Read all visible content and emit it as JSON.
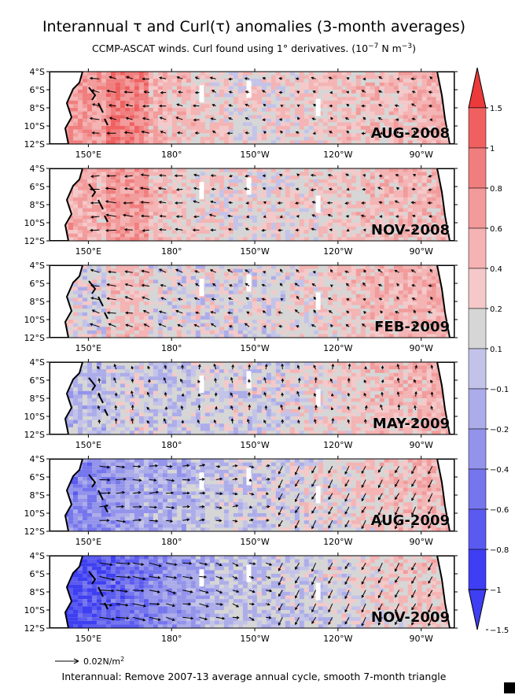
{
  "chart_data": {
    "type": "heatmap",
    "title": "Interannual τ and Curl(τ) anomalies (3-month averages)",
    "subtitle": "CCMP-ASCAT winds. Curl found using 1° derivatives. (10",
    "subtitle_exp": "−7",
    "subtitle_unit": " N m",
    "subtitle_unit_exp": "−3",
    "subtitle_close": ")",
    "footnote": "Interannual: Remove 2007-13 average annual cycle, smooth 7-month triangle",
    "vector_key": "0.02N/m",
    "vector_key_exp": "2",
    "x_ticks": [
      "150°E",
      "180°",
      "150°W",
      "120°W",
      "90°W"
    ],
    "x_values": [
      150,
      180,
      210,
      240,
      270
    ],
    "x_range": [
      136,
      282
    ],
    "y_ticks": [
      "4°S",
      "6°S",
      "8°S",
      "10°S",
      "12°S"
    ],
    "y_values": [
      -4,
      -6,
      -8,
      -10,
      -12
    ],
    "y_range": [
      -12,
      -4
    ],
    "colorbar_levels": [
      1.5,
      1,
      0.8,
      0.6,
      0.4,
      0.2,
      0.1,
      -0.1,
      -0.2,
      -0.4,
      -0.6,
      -0.8,
      -1,
      -1.5
    ],
    "colorbar_labels": [
      "1.5",
      "1",
      "0.8",
      "0.6",
      "0.4",
      "0.2",
      "0.1",
      "−0.1",
      "−0.2",
      "−0.4",
      "−0.6",
      "−0.8",
      "−1",
      "−1.5"
    ],
    "colorbar_colors": [
      "#ec3a3a",
      "#f06060",
      "#f17e7e",
      "#f39a9a",
      "#f5b3b3",
      "#f5c9c9",
      "#d6d6d6",
      "#c3c3ea",
      "#acacea",
      "#9393ec",
      "#7575ee",
      "#5a5af0",
      "#3e3ef2"
    ],
    "panels": [
      {
        "label": "AUG-2008",
        "curl_tendency": 0.35,
        "wind_u": -0.6,
        "wind_v": 0.1
      },
      {
        "label": "NOV-2008",
        "curl_tendency": 0.25,
        "wind_u": -0.7,
        "wind_v": 0.05
      },
      {
        "label": "FEB-2009",
        "curl_tendency": 0.0,
        "wind_u": -0.6,
        "wind_v": 0.2
      },
      {
        "label": "MAY-2009",
        "curl_tendency": -0.15,
        "wind_u": -0.1,
        "wind_v": 0.4
      },
      {
        "label": "AUG-2009",
        "curl_tendency": -0.4,
        "wind_u": 0.7,
        "wind_v": 0.0
      },
      {
        "label": "NOV-2009",
        "curl_tendency": -0.7,
        "wind_u": 1.0,
        "wind_v": -0.2
      }
    ]
  }
}
